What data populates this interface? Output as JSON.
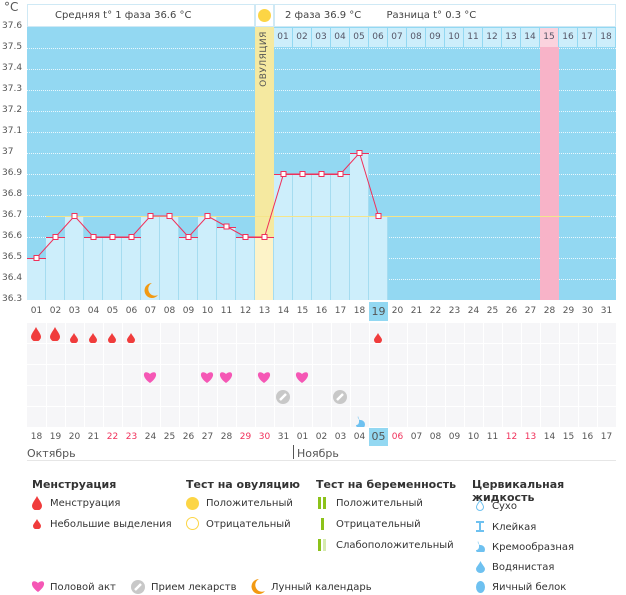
{
  "header": {
    "unit": "°C",
    "phase1": "Средняя t° 1 фаза 36.6 °C",
    "phase2": "2 фаза 36.9 °C",
    "diff": "Разница t° 0.3 °C",
    "ovulation_label": "ОВУЛЯЦИЯ"
  },
  "chart_data": {
    "type": "bar",
    "ylim": [
      36.3,
      37.6
    ],
    "yticks": [
      "37.6",
      "37.5",
      "37.4",
      "37.3",
      "37.2",
      "37.1",
      "37",
      "36.9",
      "36.8",
      "36.7",
      "36.6",
      "36.5",
      "36.4",
      "36.3"
    ],
    "coverline": 36.7,
    "ovulation_day": 13,
    "highlight_cycle_day": 28,
    "today": 19,
    "cycle_days": [
      "01",
      "02",
      "03",
      "04",
      "05",
      "06",
      "07",
      "08",
      "09",
      "10",
      "11",
      "12",
      "13",
      "14",
      "15",
      "16",
      "17",
      "18",
      "19",
      "20",
      "21",
      "22",
      "23",
      "24",
      "25",
      "26",
      "27",
      "28",
      "29",
      "30",
      "31"
    ],
    "post_ovulation_days": [
      "01",
      "02",
      "03",
      "04",
      "05",
      "06",
      "07",
      "08",
      "09",
      "10",
      "11",
      "12",
      "13",
      "14",
      "15",
      "16",
      "17",
      "18"
    ],
    "temperatures": [
      36.5,
      36.6,
      36.7,
      36.6,
      36.6,
      36.6,
      36.7,
      36.7,
      36.6,
      36.7,
      36.65,
      36.6,
      36.6,
      36.9,
      36.9,
      36.9,
      36.9,
      37.0,
      36.7
    ],
    "dates": [
      "18",
      "19",
      "20",
      "21",
      "22",
      "23",
      "24",
      "25",
      "26",
      "27",
      "28",
      "29",
      "30",
      "31",
      "01",
      "02",
      "03",
      "04",
      "05",
      "06",
      "07",
      "08",
      "09",
      "10",
      "11",
      "12",
      "13",
      "14",
      "15",
      "16",
      "17"
    ],
    "weekend_dates": [
      4,
      5,
      11,
      12,
      19,
      25,
      26
    ],
    "today_date_index": 18,
    "months": [
      "Октябрь",
      "Ноябрь"
    ],
    "moon_day": 7,
    "events": {
      "menstruation": [
        1,
        2
      ],
      "spotting": [
        3,
        4,
        5,
        6,
        19
      ],
      "intercourse": [
        7,
        10,
        11,
        13,
        15
      ],
      "medication": [
        14,
        17
      ],
      "creamy_fluid": [
        18
      ]
    }
  },
  "colors": {
    "plot_bg": "#93d8f2",
    "bar": "#cdeefb",
    "line": "#f0305a",
    "coverline": "#f5e58a",
    "ovulation": "#f5e9a0",
    "pink": "#f8b3c8",
    "blood": "#f03c3c",
    "heart": "#f557b5",
    "pill": "#c8c8c8",
    "moon": "#f29a12",
    "fluid": "#6ec1f0"
  },
  "legend": {
    "menstruation": {
      "title": "Менструация",
      "items": [
        "Менструация",
        "Небольшие выделения"
      ]
    },
    "ovulation_test": {
      "title": "Тест на овуляцию",
      "items": [
        "Положительный",
        "Отрицательный"
      ]
    },
    "pregnancy_test": {
      "title": "Тест на беременность",
      "items": [
        "Положительный",
        "Отрицательный",
        "Слабоположительный"
      ]
    },
    "cervical": {
      "title": "Цервикальная жидкость",
      "items": [
        "Сухо",
        "Клейкая",
        "Кремообразная",
        "Водянистая",
        "Яичный белок"
      ]
    },
    "other": [
      "Половой акт",
      "Прием лекарств",
      "Лунный календарь"
    ]
  }
}
